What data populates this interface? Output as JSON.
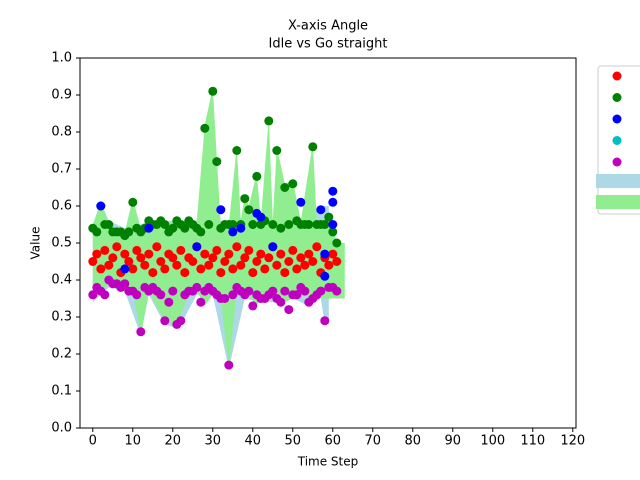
{
  "chart_data": {
    "type": "scatter",
    "title": "X-axis Angle",
    "subtitle": "Idle vs Go straight",
    "xlabel": "Time Step",
    "ylabel": "Value",
    "xlim": [
      -3.2,
      120.8
    ],
    "ylim": [
      0,
      1
    ],
    "xticks": [
      0,
      10,
      20,
      30,
      40,
      50,
      60,
      70,
      80,
      90,
      100,
      110,
      120
    ],
    "yticks": [
      {
        "value": 0,
        "label": "0.0"
      },
      0.1,
      0.2,
      0.3,
      0.4,
      0.5,
      0.6,
      0.7,
      0.8,
      0.9,
      {
        "value": 1,
        "label": "1.0"
      }
    ],
    "bands": [
      {
        "color": "#add8e6",
        "x": [
          0,
          2,
          4,
          8,
          12,
          14,
          18,
          21,
          22,
          26,
          30,
          34,
          38,
          42,
          46,
          50,
          54,
          57,
          58,
          59
        ],
        "lower": [
          0.34,
          0.36,
          0.38,
          0.37,
          0.25,
          0.36,
          0.28,
          0.27,
          0.28,
          0.36,
          0.36,
          0.16,
          0.35,
          0.34,
          0.34,
          0.35,
          0.33,
          0.35,
          0.28,
          0.28
        ],
        "upper": [
          0.55,
          0.61,
          0.56,
          0.54,
          0.55,
          0.56,
          0.56,
          0.56,
          0.56,
          0.56,
          0.56,
          0.56,
          0.57,
          0.58,
          0.56,
          0.56,
          0.57,
          0.6,
          0.6,
          0.6
        ]
      },
      {
        "color": "#90ee90",
        "x": [
          0,
          2,
          4,
          8,
          10,
          12,
          14,
          18,
          21,
          24,
          26,
          28,
          30,
          31,
          32,
          34,
          36,
          37,
          38,
          39,
          41,
          42,
          44,
          45,
          46,
          48,
          50,
          52,
          55,
          56,
          58,
          60,
          61,
          63
        ],
        "lower": [
          0.35,
          0.37,
          0.39,
          0.38,
          0.37,
          0.25,
          0.37,
          0.29,
          0.28,
          0.36,
          0.37,
          0.33,
          0.36,
          0.35,
          0.35,
          0.16,
          0.37,
          0.36,
          0.36,
          0.36,
          0.33,
          0.35,
          0.35,
          0.37,
          0.35,
          0.34,
          0.35,
          0.37,
          0.34,
          0.35,
          0.35,
          0.35,
          0.35,
          0.35
        ],
        "upper": [
          0.55,
          0.61,
          0.55,
          0.53,
          0.62,
          0.54,
          0.56,
          0.55,
          0.56,
          0.56,
          0.56,
          0.82,
          0.92,
          0.73,
          0.55,
          0.55,
          0.76,
          0.56,
          0.63,
          0.6,
          0.69,
          0.56,
          0.84,
          0.56,
          0.76,
          0.66,
          0.67,
          0.56,
          0.77,
          0.56,
          0.56,
          0.54,
          0.5,
          0.5
        ]
      }
    ],
    "series": [
      {
        "color": "#ff0000",
        "x": [
          0,
          1,
          2,
          3,
          4,
          5,
          6,
          7,
          8,
          9,
          10,
          11,
          12,
          13,
          14,
          15,
          16,
          17,
          18,
          19,
          20,
          21,
          22,
          23,
          24,
          25,
          26,
          27,
          28,
          29,
          30,
          31,
          32,
          33,
          34,
          35,
          36,
          37,
          38,
          39,
          40,
          41,
          42,
          43,
          44,
          45,
          46,
          47,
          48,
          49,
          50,
          51,
          52,
          53,
          54,
          55,
          56,
          57,
          58,
          59,
          60,
          61
        ],
        "values": [
          0.45,
          0.47,
          0.43,
          0.48,
          0.44,
          0.46,
          0.49,
          0.42,
          0.47,
          0.45,
          0.43,
          0.48,
          0.46,
          0.44,
          0.47,
          0.42,
          0.49,
          0.45,
          0.43,
          0.47,
          0.46,
          0.44,
          0.48,
          0.42,
          0.46,
          0.45,
          0.49,
          0.43,
          0.47,
          0.44,
          0.46,
          0.48,
          0.42,
          0.45,
          0.47,
          0.43,
          0.49,
          0.44,
          0.46,
          0.48,
          0.42,
          0.45,
          0.47,
          0.43,
          0.46,
          0.49,
          0.44,
          0.47,
          0.42,
          0.45,
          0.48,
          0.43,
          0.46,
          0.44,
          0.47,
          0.45,
          0.49,
          0.42,
          0.46,
          0.44,
          0.47,
          0.45
        ]
      },
      {
        "color": "#008000",
        "x": [
          0,
          1,
          2,
          3,
          4,
          5,
          6,
          7,
          8,
          9,
          10,
          11,
          12,
          13,
          14,
          15,
          16,
          17,
          18,
          19,
          20,
          21,
          22,
          23,
          24,
          25,
          26,
          27,
          28,
          29,
          30,
          31,
          32,
          33,
          34,
          35,
          36,
          37,
          38,
          39,
          40,
          41,
          42,
          43,
          44,
          45,
          46,
          47,
          48,
          49,
          50,
          51,
          52,
          53,
          54,
          55,
          56,
          57,
          58,
          59,
          60,
          61
        ],
        "values": [
          0.54,
          0.53,
          0.6,
          0.55,
          0.55,
          0.53,
          0.53,
          0.53,
          0.52,
          0.53,
          0.61,
          0.54,
          0.53,
          0.54,
          0.56,
          0.55,
          0.55,
          0.56,
          0.55,
          0.53,
          0.54,
          0.56,
          0.55,
          0.54,
          0.56,
          0.55,
          0.54,
          0.53,
          0.81,
          0.55,
          0.91,
          0.72,
          0.54,
          0.55,
          0.55,
          0.55,
          0.75,
          0.55,
          0.62,
          0.59,
          0.55,
          0.68,
          0.55,
          0.56,
          0.83,
          0.55,
          0.75,
          0.54,
          0.65,
          0.55,
          0.66,
          0.56,
          0.55,
          0.55,
          0.55,
          0.76,
          0.55,
          0.55,
          0.55,
          0.57,
          0.53,
          0.5
        ]
      },
      {
        "color": "#0000ff",
        "x": [
          2,
          8,
          14,
          26,
          32,
          35,
          37,
          41,
          42,
          45,
          52,
          57,
          58,
          58,
          60,
          60,
          60
        ],
        "values": [
          0.6,
          0.43,
          0.54,
          0.49,
          0.59,
          0.53,
          0.54,
          0.58,
          0.57,
          0.49,
          0.61,
          0.59,
          0.47,
          0.41,
          0.64,
          0.61,
          0.55
        ]
      },
      {
        "color": "#00bfbf",
        "x": [],
        "values": []
      },
      {
        "color": "#bf00bf",
        "x": [
          0,
          1,
          2,
          3,
          4,
          5,
          6,
          7,
          8,
          9,
          10,
          11,
          12,
          13,
          14,
          15,
          16,
          17,
          18,
          19,
          20,
          21,
          22,
          23,
          24,
          25,
          26,
          27,
          28,
          29,
          30,
          31,
          32,
          33,
          34,
          35,
          36,
          37,
          38,
          39,
          40,
          41,
          42,
          43,
          44,
          45,
          46,
          47,
          48,
          49,
          50,
          51,
          52,
          53,
          54,
          55,
          56,
          57,
          58,
          59,
          60,
          61
        ],
        "values": [
          0.36,
          0.38,
          0.37,
          0.36,
          0.4,
          0.39,
          0.39,
          0.38,
          0.39,
          0.37,
          0.37,
          0.36,
          0.26,
          0.38,
          0.37,
          0.38,
          0.37,
          0.36,
          0.29,
          0.34,
          0.37,
          0.28,
          0.29,
          0.36,
          0.37,
          0.37,
          0.38,
          0.34,
          0.37,
          0.38,
          0.37,
          0.36,
          0.35,
          0.35,
          0.17,
          0.36,
          0.38,
          0.37,
          0.36,
          0.37,
          0.33,
          0.36,
          0.35,
          0.35,
          0.36,
          0.37,
          0.35,
          0.34,
          0.37,
          0.32,
          0.36,
          0.36,
          0.38,
          0.37,
          0.34,
          0.35,
          0.36,
          0.37,
          0.29,
          0.38,
          0.38,
          0.37
        ]
      }
    ]
  }
}
